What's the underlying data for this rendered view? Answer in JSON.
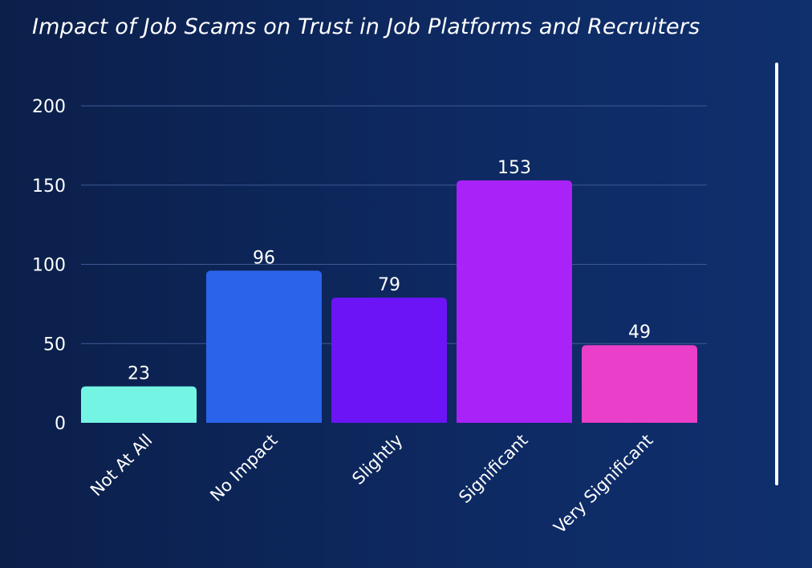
{
  "chart_data": {
    "type": "bar",
    "title": "Impact of Job Scams on Trust in Job Platforms and Recruiters",
    "categories": [
      "Not At All",
      "No Impact",
      "Slightly",
      "Significant",
      "Very Significant"
    ],
    "values": [
      23,
      96,
      79,
      153,
      49
    ],
    "ylim": [
      0,
      200
    ],
    "yticks": [
      0,
      50,
      100,
      150,
      200
    ],
    "colors": [
      "#74f5e4",
      "#2b64ea",
      "#6d14f6",
      "#a922f7",
      "#e93fc9"
    ],
    "grid": true,
    "xlabel": "",
    "ylabel": ""
  }
}
